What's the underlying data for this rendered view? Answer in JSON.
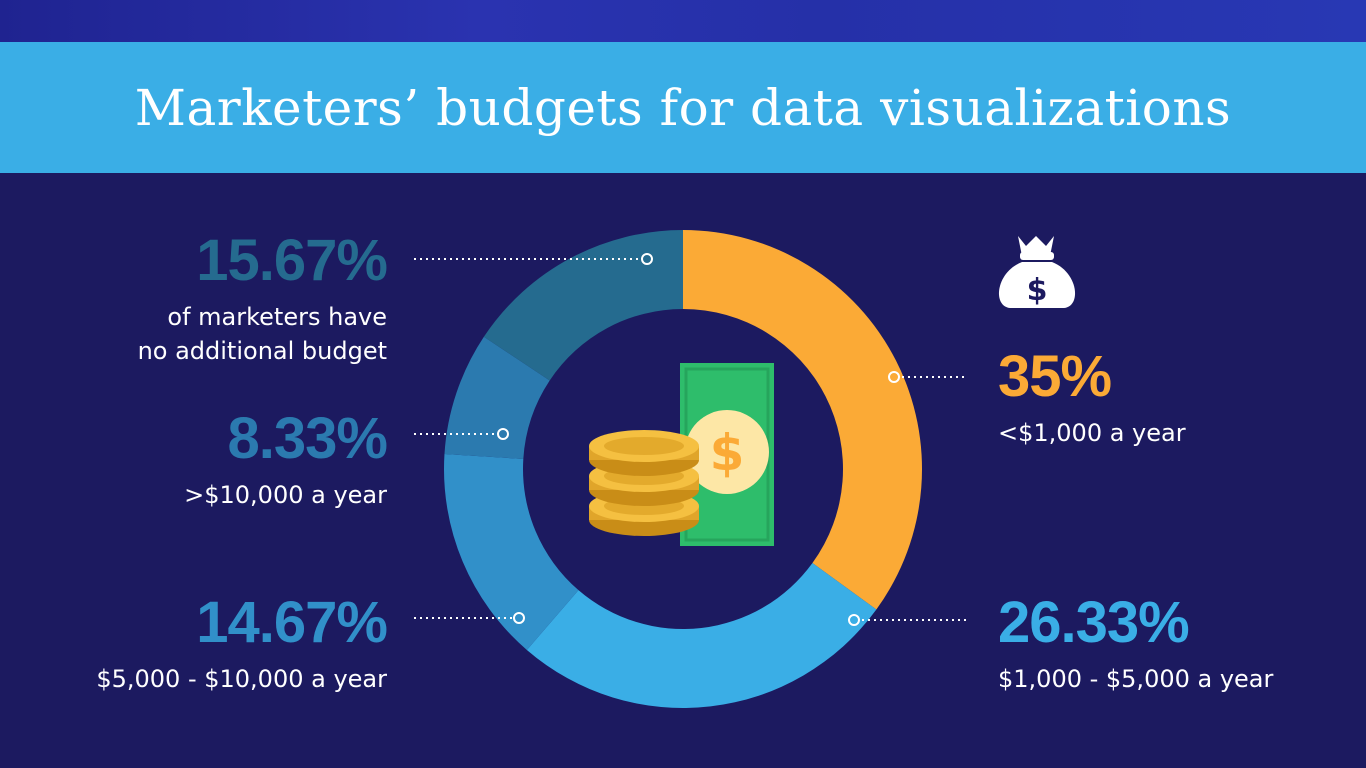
{
  "title": "Marketers’ budgets for data visualizations",
  "colors": {
    "background": "#1c1a60",
    "title_band": "#3aaee6",
    "orange": "#fbaa36",
    "light_blue": "#3aaee6",
    "mid_blue": "#3190c9",
    "steel_blue": "#2b7aaf",
    "dark_teal": "#256b8f"
  },
  "icons": {
    "center": "money-cash-and-coins-icon",
    "money_bag": "money-bag-icon"
  },
  "chart_data": {
    "type": "pie",
    "variant": "donut",
    "slices": [
      {
        "label": "<$1,000 a year",
        "value": 35,
        "display": "35%",
        "color": "#fbaa36"
      },
      {
        "label": "$1,000 - $5,000 a year",
        "value": 26.33,
        "display": "26.33%",
        "color": "#3aaee6"
      },
      {
        "label": "$5,000 - $10,000 a year",
        "value": 14.67,
        "display": "14.67%",
        "color": "#3190c9"
      },
      {
        "label": ">$10,000 a year",
        "value": 8.33,
        "display": "8.33%",
        "color": "#2b7aaf"
      },
      {
        "label": "of marketers have no additional budget",
        "value": 15.67,
        "display": "15.67%",
        "color": "#256b8f"
      }
    ]
  },
  "callouts": {
    "s15": {
      "pct": "15.67%",
      "line1": "of marketers have",
      "line2": "no additional budget"
    },
    "s8": {
      "pct": "8.33%",
      "line1": ">$10,000 a year"
    },
    "s14": {
      "pct": "14.67%",
      "line1": "$5,000 - $10,000 a year"
    },
    "s35": {
      "pct": "35%",
      "line1": "<$1,000 a year"
    },
    "s26": {
      "pct": "26.33%",
      "line1": "$1,000 - $5,000 a year"
    }
  }
}
